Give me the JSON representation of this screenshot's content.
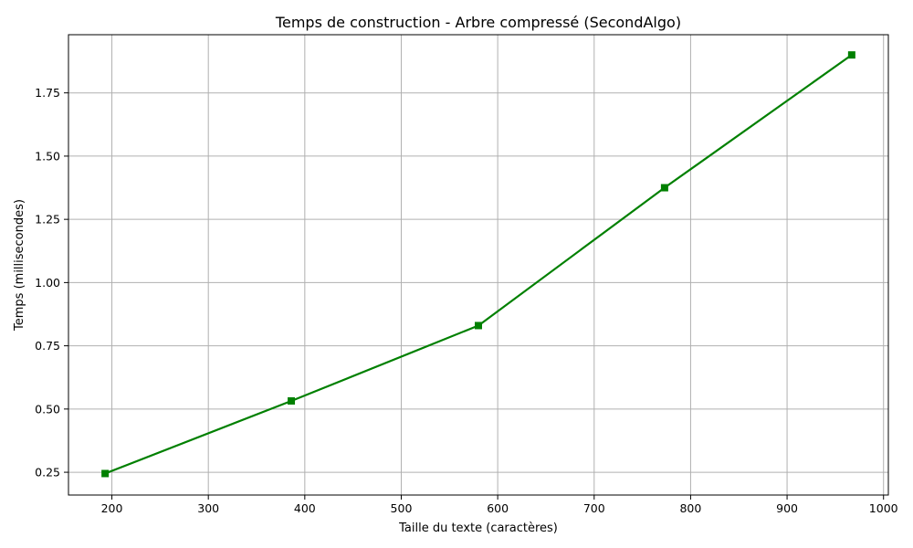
{
  "chart_data": {
    "type": "line",
    "title": "Temps de construction - Arbre compressé (SecondAlgo)",
    "xlabel": "Taille du texte (caractères)",
    "ylabel": "Temps (millisecondes)",
    "xlim": [
      155,
      1005
    ],
    "ylim": [
      0.16,
      1.98
    ],
    "xticks": [
      200,
      300,
      400,
      500,
      600,
      700,
      800,
      900,
      1000
    ],
    "yticks": [
      0.25,
      0.5,
      0.75,
      1.0,
      1.25,
      1.5,
      1.75
    ],
    "xtick_labels": [
      "200",
      "300",
      "400",
      "500",
      "600",
      "700",
      "800",
      "900",
      "1000"
    ],
    "ytick_labels": [
      "0.25",
      "0.50",
      "0.75",
      "1.00",
      "1.25",
      "1.50",
      "1.75"
    ],
    "grid": true,
    "series": [
      {
        "color": "#008000",
        "marker": "square",
        "x": [
          193,
          386,
          580,
          773,
          967
        ],
        "y": [
          0.245,
          0.532,
          0.83,
          1.375,
          1.9
        ]
      }
    ]
  }
}
